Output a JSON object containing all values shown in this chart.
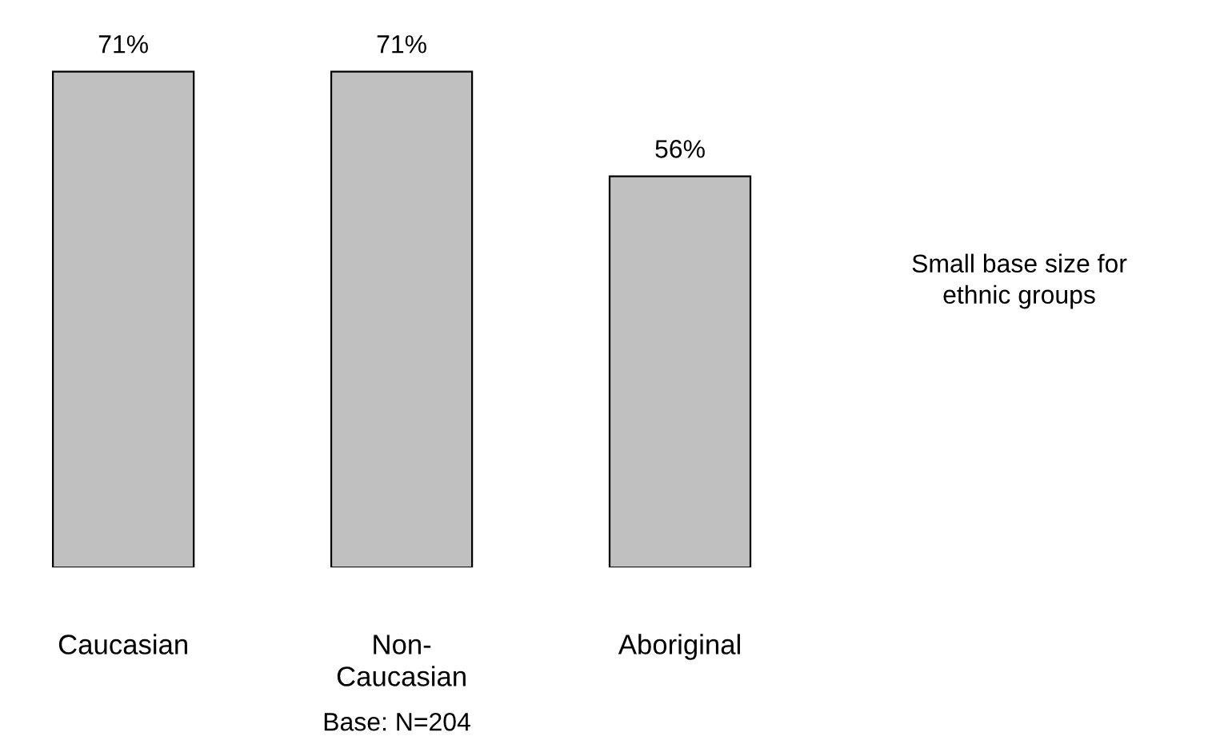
{
  "chart_data": {
    "type": "bar",
    "categories": [
      "Caucasian",
      "Non-\nCaucasian",
      "Aboriginal"
    ],
    "values": [
      71,
      71,
      56
    ],
    "value_labels": [
      "71%",
      "71%",
      "56%"
    ],
    "color": "#c0c0c0",
    "grid": false,
    "legend": false,
    "annotations": [
      "Small base size for\nethnic groups",
      "Base: N=204"
    ]
  }
}
